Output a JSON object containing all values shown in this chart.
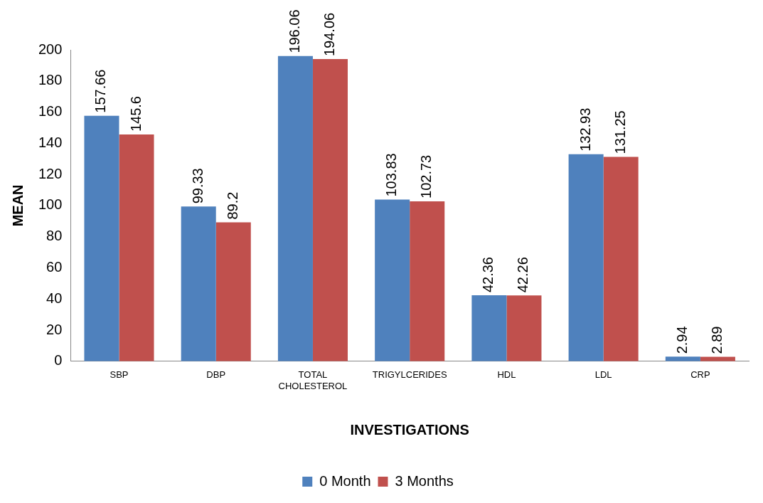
{
  "chart_data": {
    "type": "bar",
    "xlabel": "INVESTIGATIONS",
    "ylabel": "MEAN",
    "categories": [
      "SBP",
      "DBP",
      "TOTAL CHOLESTEROL",
      "TRIGYLCERIDES",
      "HDL",
      "LDL",
      "CRP"
    ],
    "series": [
      {
        "name": "0 Month",
        "color": "#4f81bd",
        "values": [
          157.66,
          99.33,
          196.06,
          103.83,
          42.36,
          132.93,
          2.94
        ]
      },
      {
        "name": "3 Months",
        "color": "#c0504d",
        "values": [
          145.6,
          89.2,
          194.06,
          102.73,
          42.26,
          131.25,
          2.89
        ]
      }
    ],
    "ylim": [
      0,
      200
    ],
    "yticks": [
      0,
      20,
      40,
      60,
      80,
      100,
      120,
      140,
      160,
      180,
      200
    ],
    "grid": false,
    "legend": "bottom",
    "data_labels": true
  }
}
